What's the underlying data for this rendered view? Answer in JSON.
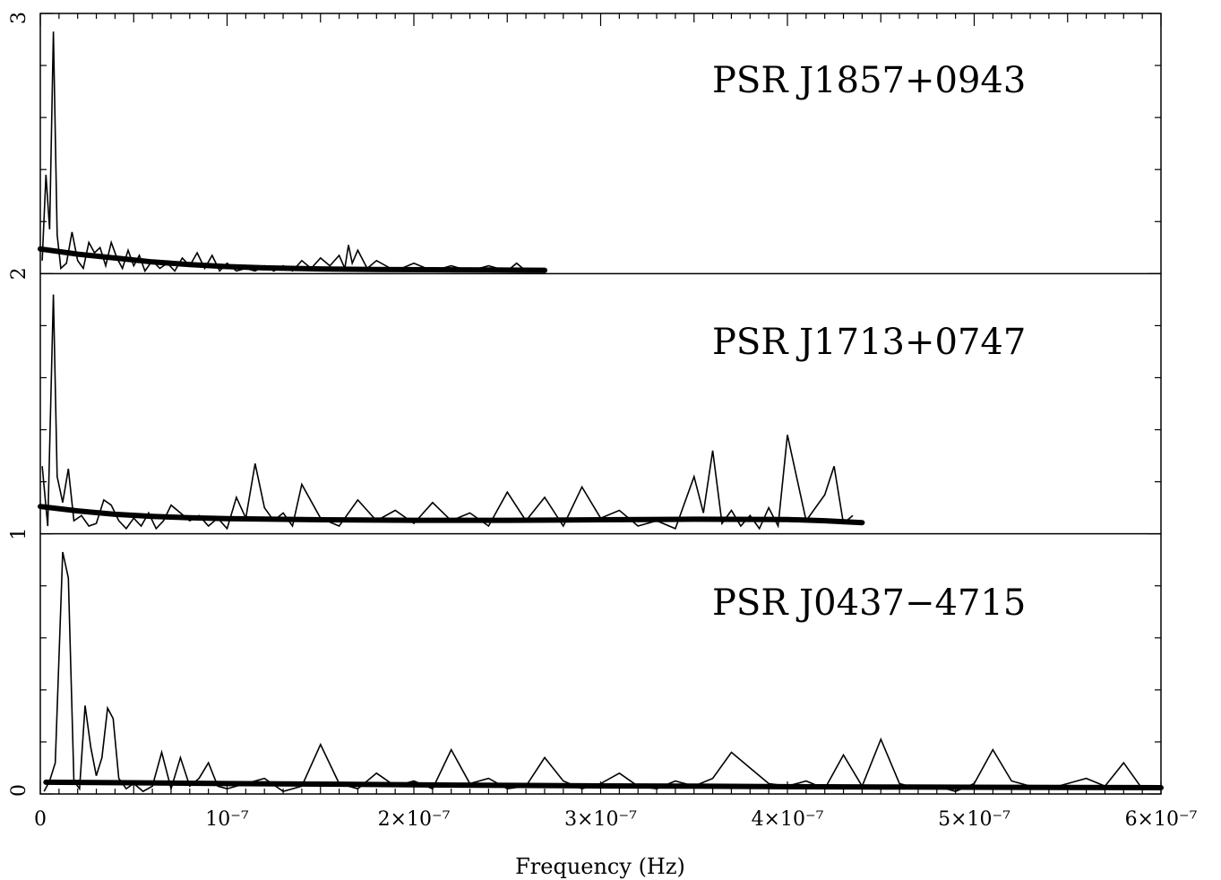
{
  "chart_data": {
    "type": "line",
    "xlabel": "Frequency (Hz)",
    "xlim": [
      0,
      6e-07
    ],
    "x_tick_labels": [
      "0",
      "10⁻⁷",
      "2×10⁻⁷",
      "3×10⁻⁷",
      "4×10⁻⁷",
      "5×10⁻⁷",
      "6×10⁻⁷"
    ],
    "x_ticks": [
      0,
      1e-07,
      2e-07,
      3e-07,
      4e-07,
      5e-07,
      6e-07
    ],
    "ylim": [
      0,
      3
    ],
    "y_tick_labels": [
      "0",
      "1",
      "2",
      "3"
    ],
    "y_ticks": [
      0,
      1,
      2,
      3
    ],
    "grid": false,
    "panels": [
      {
        "label": "PSR J1857+0943",
        "offset": 2,
        "spectrum": {
          "x": [
            1e-09,
            3e-09,
            5e-09,
            7e-09,
            9e-09,
            1.1e-08,
            1.4e-08,
            1.7e-08,
            2e-08,
            2.3e-08,
            2.6e-08,
            2.9e-08,
            3.2e-08,
            3.5e-08,
            3.8e-08,
            4.1e-08,
            4.4e-08,
            4.7e-08,
            5e-08,
            5.3e-08,
            5.6e-08,
            6e-08,
            6.4e-08,
            6.8e-08,
            7.2e-08,
            7.6e-08,
            8e-08,
            8.4e-08,
            8.8e-08,
            9.2e-08,
            9.6e-08,
            1e-07,
            1.05e-07,
            1.1e-07,
            1.15e-07,
            1.2e-07,
            1.25e-07,
            1.3e-07,
            1.35e-07,
            1.4e-07,
            1.45e-07,
            1.5e-07,
            1.55e-07,
            1.6e-07,
            1.63e-07,
            1.65e-07,
            1.67e-07,
            1.7e-07,
            1.75e-07,
            1.8e-07,
            1.9e-07,
            2e-07,
            2.1e-07,
            2.2e-07,
            2.3e-07,
            2.4e-07,
            2.5e-07,
            2.55e-07,
            2.6e-07
          ],
          "y": [
            2.05,
            2.38,
            2.17,
            2.93,
            2.15,
            2.02,
            2.04,
            2.16,
            2.05,
            2.02,
            2.12,
            2.08,
            2.1,
            2.03,
            2.12,
            2.06,
            2.02,
            2.09,
            2.03,
            2.07,
            2.01,
            2.05,
            2.02,
            2.04,
            2.01,
            2.06,
            2.03,
            2.08,
            2.02,
            2.07,
            2.01,
            2.04,
            2.01,
            2.02,
            2.01,
            2.03,
            2.01,
            2.03,
            2.01,
            2.05,
            2.02,
            2.06,
            2.03,
            2.07,
            2.02,
            2.11,
            2.04,
            2.09,
            2.02,
            2.05,
            2.01,
            2.04,
            2.01,
            2.03,
            2.01,
            2.03,
            2.01,
            2.04,
            2.01
          ]
        },
        "model": {
          "x": [
            0,
            2e-08,
            4e-08,
            6e-08,
            8e-08,
            1e-07,
            1.2e-07,
            1.5e-07,
            1.8e-07,
            2.1e-07,
            2.4e-07,
            2.7e-07
          ],
          "y": [
            2.095,
            2.075,
            2.06,
            2.045,
            2.035,
            2.027,
            2.022,
            2.018,
            2.016,
            2.015,
            2.014,
            2.013
          ]
        }
      },
      {
        "label": "PSR J1713+0747",
        "offset": 1,
        "spectrum": {
          "x": [
            1e-09,
            4e-09,
            7e-09,
            9e-09,
            1.2e-08,
            1.5e-08,
            1.8e-08,
            2.2e-08,
            2.6e-08,
            3e-08,
            3.4e-08,
            3.8e-08,
            4.2e-08,
            4.6e-08,
            5e-08,
            5.4e-08,
            5.8e-08,
            6.2e-08,
            6.6e-08,
            7e-08,
            7.5e-08,
            8e-08,
            8.5e-08,
            9e-08,
            9.5e-08,
            1e-07,
            1.05e-07,
            1.1e-07,
            1.15e-07,
            1.2e-07,
            1.25e-07,
            1.3e-07,
            1.35e-07,
            1.4e-07,
            1.5e-07,
            1.6e-07,
            1.7e-07,
            1.8e-07,
            1.9e-07,
            2e-07,
            2.1e-07,
            2.2e-07,
            2.3e-07,
            2.4e-07,
            2.5e-07,
            2.6e-07,
            2.7e-07,
            2.8e-07,
            2.9e-07,
            3e-07,
            3.1e-07,
            3.2e-07,
            3.3e-07,
            3.4e-07,
            3.5e-07,
            3.55e-07,
            3.6e-07,
            3.65e-07,
            3.7e-07,
            3.75e-07,
            3.8e-07,
            3.85e-07,
            3.9e-07,
            3.95e-07,
            4e-07,
            4.1e-07,
            4.2e-07,
            4.25e-07,
            4.3e-07,
            4.35e-07
          ],
          "y": [
            1.26,
            1.03,
            1.92,
            1.22,
            1.12,
            1.25,
            1.05,
            1.07,
            1.03,
            1.04,
            1.13,
            1.11,
            1.05,
            1.02,
            1.06,
            1.03,
            1.08,
            1.02,
            1.05,
            1.11,
            1.08,
            1.05,
            1.07,
            1.03,
            1.06,
            1.02,
            1.14,
            1.06,
            1.27,
            1.1,
            1.05,
            1.08,
            1.03,
            1.19,
            1.06,
            1.03,
            1.13,
            1.05,
            1.09,
            1.04,
            1.12,
            1.05,
            1.08,
            1.03,
            1.16,
            1.05,
            1.14,
            1.03,
            1.18,
            1.06,
            1.09,
            1.03,
            1.05,
            1.02,
            1.22,
            1.08,
            1.32,
            1.04,
            1.09,
            1.03,
            1.07,
            1.02,
            1.1,
            1.03,
            1.38,
            1.05,
            1.15,
            1.26,
            1.04,
            1.07
          ]
        },
        "model": {
          "x": [
            0,
            2e-08,
            4e-08,
            6e-08,
            8e-08,
            1e-07,
            1.5e-07,
            2e-07,
            2.5e-07,
            3e-07,
            3.5e-07,
            4e-07,
            4.2e-07,
            4.4e-07
          ],
          "y": [
            1.105,
            1.088,
            1.075,
            1.067,
            1.062,
            1.058,
            1.054,
            1.052,
            1.052,
            1.054,
            1.056,
            1.055,
            1.05,
            1.043
          ]
        }
      },
      {
        "label": "PSR J0437−4715",
        "offset": 0,
        "spectrum": {
          "x": [
            2e-09,
            5e-09,
            8e-09,
            1.2e-08,
            1.5e-08,
            1.8e-08,
            2.1e-08,
            2.4e-08,
            2.7e-08,
            3e-08,
            3.3e-08,
            3.6e-08,
            3.9e-08,
            4.2e-08,
            4.6e-08,
            5e-08,
            5.5e-08,
            6e-08,
            6.5e-08,
            7e-08,
            7.5e-08,
            8e-08,
            8.5e-08,
            9e-08,
            9.5e-08,
            1e-07,
            1.1e-07,
            1.2e-07,
            1.3e-07,
            1.4e-07,
            1.5e-07,
            1.6e-07,
            1.7e-07,
            1.8e-07,
            1.9e-07,
            2e-07,
            2.1e-07,
            2.2e-07,
            2.3e-07,
            2.4e-07,
            2.5e-07,
            2.6e-07,
            2.7e-07,
            2.8e-07,
            2.9e-07,
            3e-07,
            3.1e-07,
            3.2e-07,
            3.3e-07,
            3.4e-07,
            3.5e-07,
            3.6e-07,
            3.7e-07,
            3.8e-07,
            3.9e-07,
            4e-07,
            4.1e-07,
            4.2e-07,
            4.3e-07,
            4.4e-07,
            4.5e-07,
            4.6e-07,
            4.7e-07,
            4.8e-07,
            4.9e-07,
            5e-07,
            5.1e-07,
            5.2e-07,
            5.3e-07,
            5.4e-07,
            5.5e-07,
            5.6e-07,
            5.7e-07,
            5.8e-07,
            5.9e-07,
            6e-07
          ],
          "y": [
            0.01,
            0.05,
            0.12,
            0.93,
            0.83,
            0.05,
            0.02,
            0.34,
            0.18,
            0.07,
            0.14,
            0.33,
            0.29,
            0.06,
            0.02,
            0.04,
            0.01,
            0.03,
            0.16,
            0.02,
            0.14,
            0.03,
            0.06,
            0.12,
            0.03,
            0.02,
            0.04,
            0.06,
            0.01,
            0.03,
            0.19,
            0.04,
            0.02,
            0.08,
            0.03,
            0.05,
            0.02,
            0.17,
            0.04,
            0.06,
            0.02,
            0.03,
            0.14,
            0.05,
            0.02,
            0.04,
            0.08,
            0.03,
            0.02,
            0.05,
            0.03,
            0.06,
            0.16,
            0.1,
            0.04,
            0.03,
            0.05,
            0.02,
            0.15,
            0.03,
            0.21,
            0.04,
            0.02,
            0.03,
            0.01,
            0.04,
            0.17,
            0.05,
            0.03,
            0.02,
            0.04,
            0.06,
            0.03,
            0.12,
            0.02,
            0.03
          ]
        },
        "model": {
          "x": [
            3e-09,
            5e-08,
            1e-07,
            1.5e-07,
            2e-07,
            2.5e-07,
            3e-07,
            3.5e-07,
            4e-07,
            4.5e-07,
            5e-07,
            5.5e-07,
            6e-07
          ],
          "y": [
            0.045,
            0.043,
            0.04,
            0.038,
            0.035,
            0.033,
            0.031,
            0.03,
            0.028,
            0.027,
            0.026,
            0.025,
            0.024
          ]
        }
      }
    ]
  }
}
